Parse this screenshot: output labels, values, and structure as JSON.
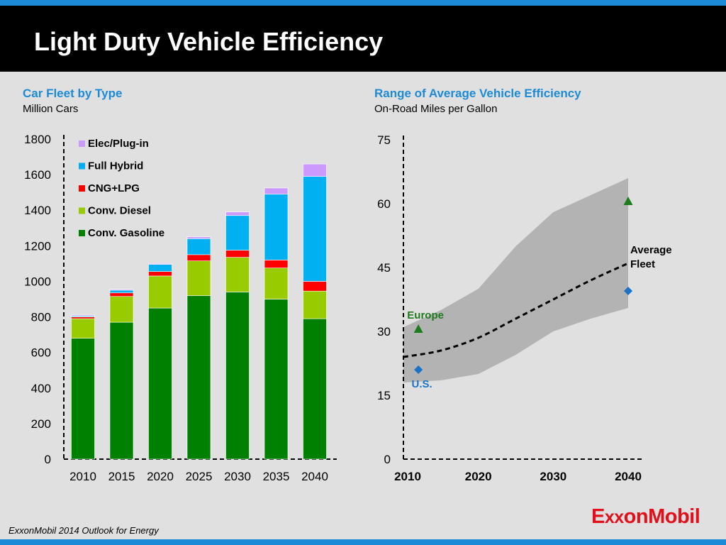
{
  "title": "Light Duty Vehicle Efficiency",
  "footer": "ExxonMobil 2014 Outlook for Energy",
  "logo": {
    "text_pre": "E",
    "text_xx": "xx",
    "text_post": "onMobil",
    "color": "#e2101b"
  },
  "colors": {
    "accent_blue": "#1c8ad6",
    "header_bg": "#000000",
    "page_bg": "#e0e0e0"
  },
  "chart_data": [
    {
      "type": "bar",
      "stacked": true,
      "title": "Car Fleet by Type",
      "subtitle": "Million Cars",
      "categories": [
        "2010",
        "2015",
        "2020",
        "2025",
        "2030",
        "2035",
        "2040"
      ],
      "ylim": [
        0,
        1800
      ],
      "yticks": [
        0,
        200,
        400,
        600,
        800,
        1000,
        1200,
        1400,
        1600,
        1800
      ],
      "legend_position": "top-left",
      "series": [
        {
          "name": "Conv. Gasoline",
          "color": "#008000",
          "values": [
            680,
            770,
            850,
            920,
            940,
            900,
            790
          ]
        },
        {
          "name": "Conv. Diesel",
          "color": "#99cc00",
          "values": [
            110,
            145,
            180,
            195,
            195,
            175,
            155
          ]
        },
        {
          "name": "CNG+LPG",
          "color": "#ff0000",
          "values": [
            10,
            20,
            25,
            35,
            40,
            45,
            55
          ]
        },
        {
          "name": "Full Hybrid",
          "color": "#00b0f0",
          "values": [
            5,
            15,
            40,
            90,
            195,
            370,
            590
          ]
        },
        {
          "name": "Elec/Plug-in",
          "color": "#cc99ff",
          "values": [
            5,
            5,
            5,
            10,
            20,
            35,
            70
          ]
        }
      ]
    },
    {
      "type": "area",
      "title": "Range of Average Vehicle Efficiency",
      "subtitle": "On-Road Miles per Gallon",
      "xlim": [
        2010,
        2040
      ],
      "xticks": [
        2010,
        2020,
        2030,
        2040
      ],
      "ylim": [
        0,
        75
      ],
      "yticks": [
        0,
        15,
        30,
        45,
        60,
        75
      ],
      "range_band": {
        "color": "#b3b3b3",
        "x": [
          2010,
          2015,
          2020,
          2025,
          2030,
          2035,
          2040
        ],
        "upper": [
          31,
          35,
          40,
          50,
          58,
          62,
          66
        ],
        "lower": [
          18,
          18.5,
          20,
          24.5,
          30,
          33,
          35.5
        ]
      },
      "series": [
        {
          "name": "Average Fleet",
          "label_lines": [
            "Average",
            "Fleet"
          ],
          "style": "dashed",
          "color": "#000000",
          "x": [
            2010,
            2015,
            2020,
            2025,
            2030,
            2035,
            2040
          ],
          "y": [
            24,
            25.5,
            28.5,
            33,
            37.5,
            42,
            46
          ]
        }
      ],
      "markers": [
        {
          "label": "Europe",
          "shape": "triangle",
          "color": "#1e7b1e",
          "x": 2012,
          "y": 30.5
        },
        {
          "label": "",
          "shape": "triangle",
          "color": "#1e7b1e",
          "x": 2040,
          "y": 60.5
        },
        {
          "label": "U.S.",
          "shape": "diamond",
          "color": "#1c73c6",
          "x": 2012,
          "y": 21
        },
        {
          "label": "",
          "shape": "diamond",
          "color": "#1c73c6",
          "x": 2040,
          "y": 39.5
        }
      ]
    }
  ]
}
